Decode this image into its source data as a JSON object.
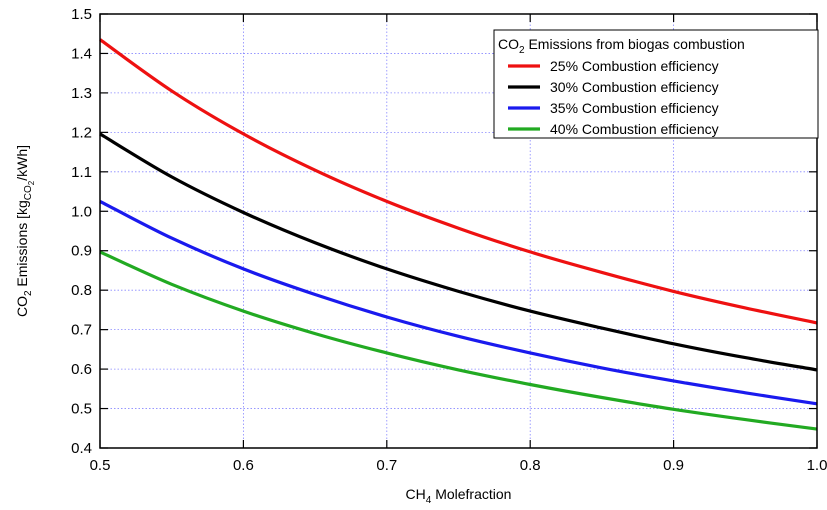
{
  "chart_data": {
    "type": "line",
    "xlabel": {
      "main": "CH",
      "sub": "4",
      "rest": " Molefraction"
    },
    "ylabel": {
      "a": "CO",
      "a_sub": "2",
      "b": " Emissions [kg",
      "b_sub": "CO",
      "b_subsub": "2",
      "c": "/kWh]"
    },
    "xlim": [
      0.5,
      1.0
    ],
    "ylim": [
      0.4,
      1.5
    ],
    "x_ticks": [
      "0.5",
      "0.6",
      "0.7",
      "0.8",
      "0.9",
      "1.0"
    ],
    "y_ticks": [
      "0.4",
      "0.5",
      "0.6",
      "0.7",
      "0.8",
      "0.9",
      "1.0",
      "1.1",
      "1.2",
      "1.3",
      "1.4",
      "1.5"
    ],
    "grid": true,
    "legend": {
      "placement": "top-right",
      "title_main": "CO",
      "title_sub": "2",
      "title_rest": " Emissions from biogas combustion"
    },
    "x": [
      0.5,
      0.55,
      0.6,
      0.65,
      0.7,
      0.75,
      0.8,
      0.85,
      0.9,
      0.95,
      1.0
    ],
    "series": [
      {
        "name": "25% Combustion efficiency",
        "color": "#ee1111",
        "values": [
          1.435,
          1.305,
          1.196,
          1.104,
          1.025,
          0.957,
          0.897,
          0.845,
          0.797,
          0.755,
          0.717
        ]
      },
      {
        "name": "30% Combustion efficiency",
        "color": "#000000",
        "values": [
          1.196,
          1.087,
          0.997,
          0.92,
          0.854,
          0.797,
          0.747,
          0.704,
          0.664,
          0.629,
          0.598
        ]
      },
      {
        "name": "35% Combustion efficiency",
        "color": "#1a1aee",
        "values": [
          1.025,
          0.932,
          0.854,
          0.789,
          0.732,
          0.683,
          0.641,
          0.603,
          0.57,
          0.54,
          0.512
        ]
      },
      {
        "name": "40% Combustion efficiency",
        "color": "#22aa22",
        "values": [
          0.897,
          0.815,
          0.747,
          0.69,
          0.641,
          0.598,
          0.561,
          0.528,
          0.498,
          0.472,
          0.448
        ]
      }
    ]
  }
}
